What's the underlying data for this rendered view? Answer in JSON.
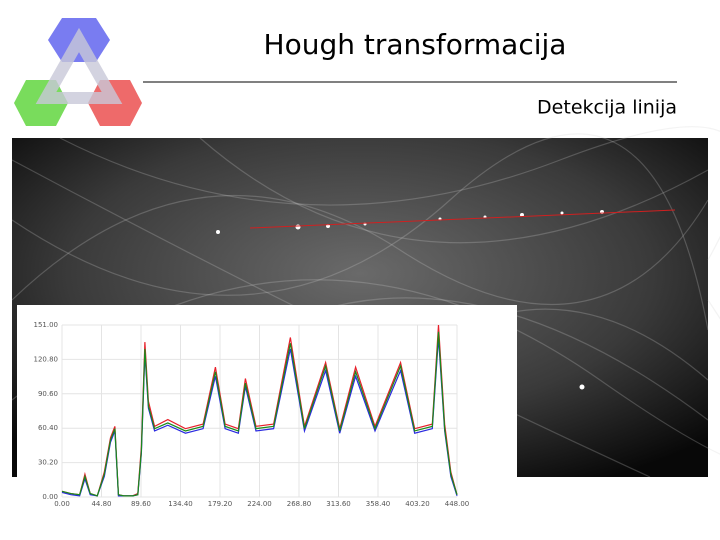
{
  "header": {
    "title": "Hough transformacija",
    "subtitle": "Detekcija linija"
  },
  "chart_data": {
    "type": "line",
    "x": [
      0,
      10,
      20,
      26,
      32,
      40,
      48,
      55,
      60,
      64,
      70,
      80,
      86,
      90,
      94,
      98,
      105,
      120,
      140,
      160,
      174,
      185,
      200,
      208,
      220,
      240,
      259,
      275,
      299,
      315,
      333,
      355,
      384,
      400,
      420,
      427,
      434,
      441,
      448
    ],
    "series": [
      {
        "color": "#e8202a",
        "values": [
          5,
          3,
          2,
          20,
          3,
          1,
          22,
          52,
          62,
          2,
          1,
          1,
          3,
          44,
          136,
          84,
          62,
          68,
          60,
          64,
          114,
          64,
          60,
          104,
          62,
          64,
          140,
          62,
          118,
          60,
          114,
          62,
          118,
          60,
          64,
          151,
          64,
          22,
          2
        ]
      },
      {
        "color": "#2a2ae0",
        "values": [
          4,
          2,
          1,
          16,
          2,
          1,
          18,
          48,
          58,
          1,
          1,
          1,
          2,
          38,
          126,
          78,
          58,
          63,
          56,
          60,
          106,
          60,
          56,
          97,
          58,
          60,
          130,
          58,
          111,
          56,
          106,
          58,
          111,
          56,
          60,
          140,
          58,
          18,
          1
        ]
      },
      {
        "color": "#1a8a1a",
        "values": [
          5,
          3,
          2,
          18,
          3,
          1,
          20,
          50,
          60,
          2,
          1,
          1,
          2,
          40,
          130,
          80,
          60,
          65,
          58,
          62,
          110,
          62,
          58,
          100,
          60,
          62,
          135,
          60,
          115,
          58,
          110,
          60,
          115,
          58,
          62,
          145,
          60,
          20,
          2
        ]
      }
    ],
    "xlim": [
      0,
      448
    ],
    "ylim": [
      0,
      151
    ],
    "xticks": [
      {
        "value": 0,
        "label": "0.00"
      },
      {
        "value": 44.8,
        "label": "44.80"
      },
      {
        "value": 89.6,
        "label": "89.60"
      },
      {
        "value": 134.4,
        "label": "134.40"
      },
      {
        "value": 179.2,
        "label": "179.20"
      },
      {
        "value": 224,
        "label": "224.00"
      },
      {
        "value": 268.8,
        "label": "268.80"
      },
      {
        "value": 313.6,
        "label": "313.60"
      },
      {
        "value": 358.4,
        "label": "358.40"
      },
      {
        "value": 403.2,
        "label": "403.20"
      },
      {
        "value": 448,
        "label": "448.00"
      }
    ],
    "yticks": [
      {
        "value": 0,
        "label": "0.00"
      },
      {
        "value": 30.2,
        "label": "30.20"
      },
      {
        "value": 60.4,
        "label": "60.40"
      },
      {
        "value": 90.6,
        "label": "90.60"
      },
      {
        "value": 120.8,
        "label": "120.80"
      },
      {
        "value": 151,
        "label": "151.00"
      }
    ],
    "grid": true
  }
}
